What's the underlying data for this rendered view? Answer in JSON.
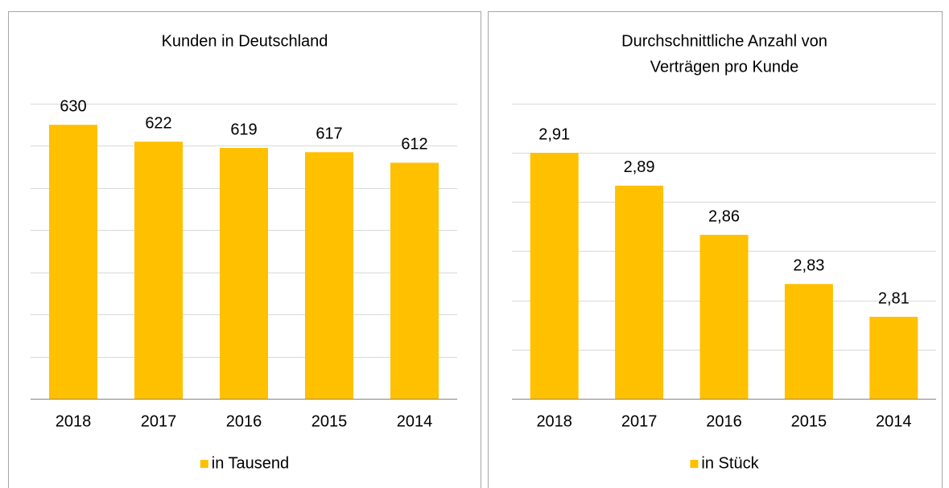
{
  "chart_data": [
    {
      "type": "bar",
      "title": "Kunden in Deutschland",
      "categories": [
        "2018",
        "2017",
        "2016",
        "2015",
        "2014"
      ],
      "series": [
        {
          "name": "in Tausend",
          "color": "#ffc000",
          "values": [
            630,
            622,
            619,
            617,
            612
          ]
        }
      ],
      "ylim": [
        500,
        640
      ],
      "yticks": [
        500,
        520,
        540,
        560,
        580,
        600,
        620,
        640
      ],
      "grid": true,
      "legend": "bottom"
    },
    {
      "type": "bar",
      "title": [
        "Durchschnittliche Anzahl von",
        "Verträgen pro Kunde"
      ],
      "categories": [
        "2018",
        "2017",
        "2016",
        "2015",
        "2014"
      ],
      "series": [
        {
          "name": "in Stück",
          "color": "#ffc000",
          "values": [
            2.91,
            2.89,
            2.86,
            2.83,
            2.81
          ],
          "value_labels": [
            "2,91",
            "2,89",
            "2,86",
            "2,83",
            "2,81"
          ]
        }
      ],
      "ylim": [
        2.76,
        2.94
      ],
      "yticks": [
        2.76,
        2.79,
        2.82,
        2.85,
        2.88,
        2.91,
        2.94
      ],
      "grid": true,
      "legend": "bottom"
    }
  ]
}
